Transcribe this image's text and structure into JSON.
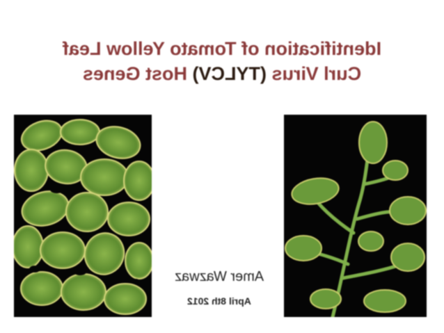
{
  "slide": {
    "title_line1_prefix": "Identification of ",
    "title_line1_bold": "Tomato Yellow Leaf",
    "title_line2_prefix": "Curl Virus ",
    "title_line2_bold": "(TYLCV)",
    "title_line2_suffix": " Host Genes",
    "author": "Amer Wazwaz",
    "date": "April 8th 2012"
  },
  "colors": {
    "title": "#8b3a3a",
    "title_accent": "#2a1a10",
    "photo_background": "#050505",
    "leaf_green": "#6a9a3a",
    "leaf_yellow": "#c8cc6a"
  },
  "images": {
    "left": "tomato-leaves-closeup",
    "right": "tomato-plant-stem"
  }
}
